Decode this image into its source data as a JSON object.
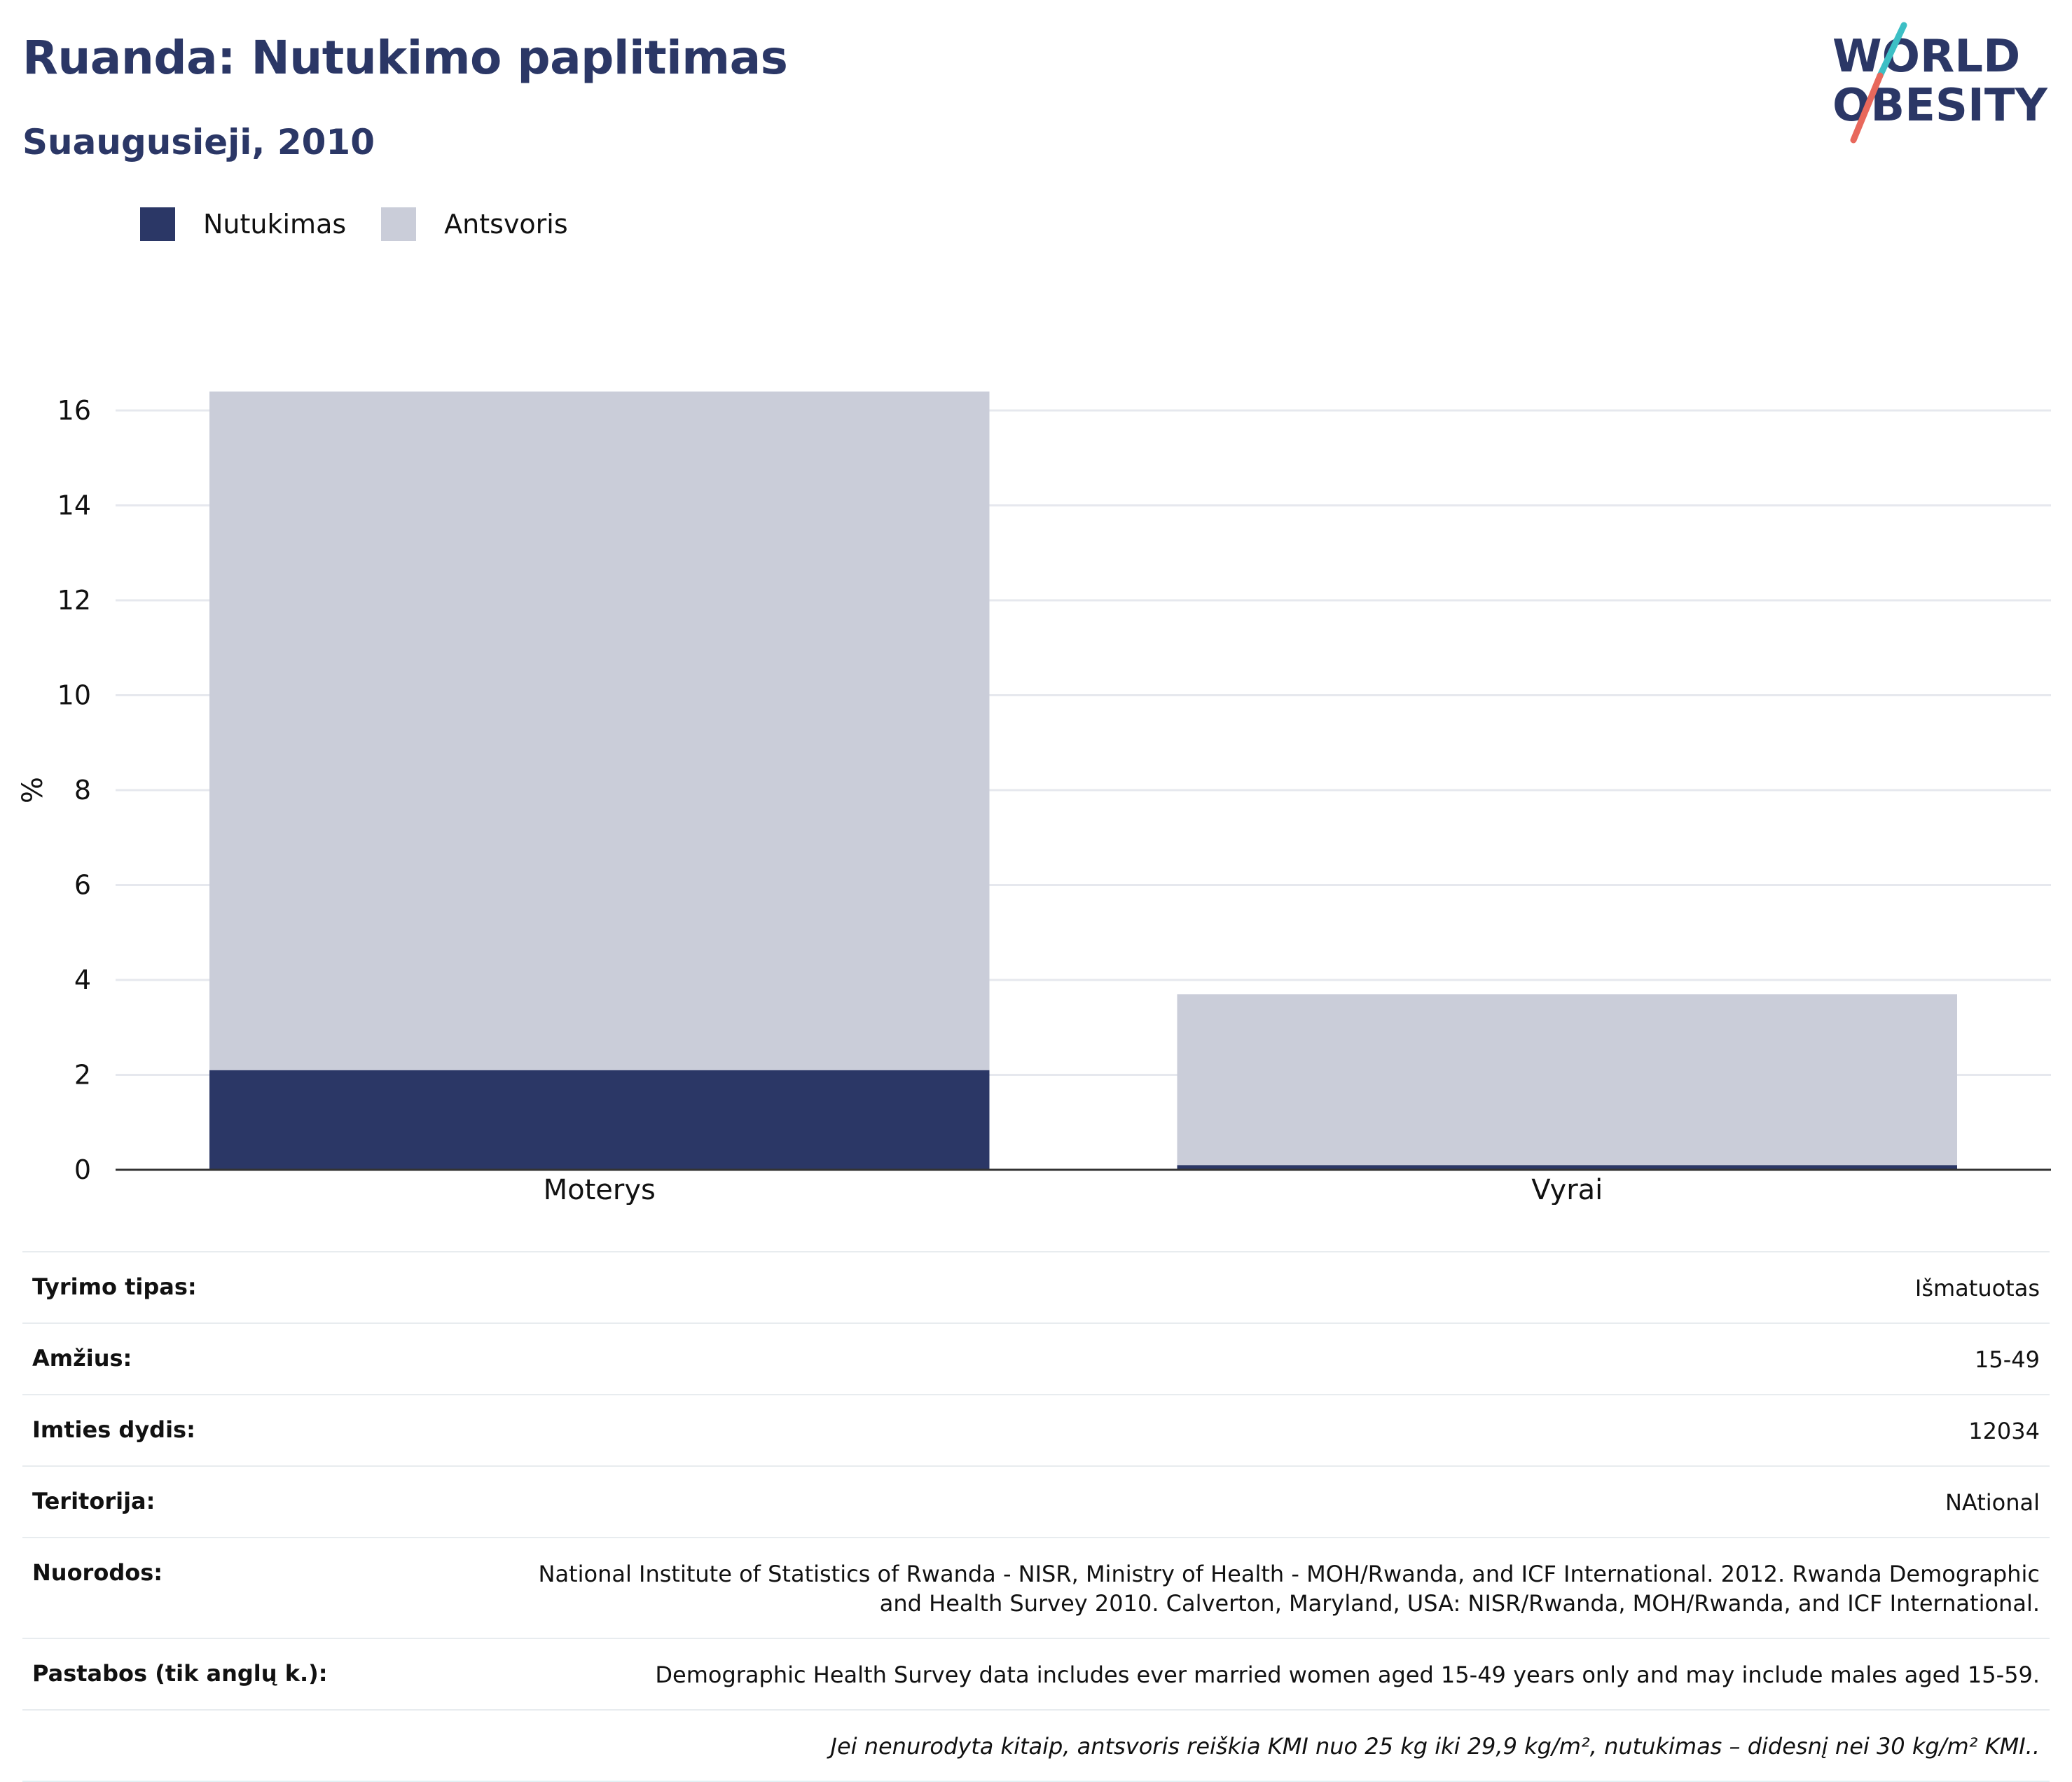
{
  "header": {
    "title": "Ruanda: Nutukimo paplitimas",
    "subtitle": "Suaugusieji, 2010"
  },
  "logo": {
    "line1": "WORLD",
    "line2": "OBESITY",
    "slash_colors": [
      "#3cbfc5",
      "#e8685c"
    ]
  },
  "legend": [
    {
      "label": "Nutukimas",
      "color": "#2b3766"
    },
    {
      "label": "Antsvoris",
      "color": "#cacdd9"
    }
  ],
  "chart_data": {
    "type": "bar",
    "stacked": true,
    "categories": [
      "Moterys",
      "Vyrai"
    ],
    "series": [
      {
        "name": "Nutukimas",
        "values": [
          2.1,
          0.1
        ],
        "color": "#2b3766"
      },
      {
        "name": "Antsvoris",
        "values": [
          14.3,
          3.6
        ],
        "color": "#cacdd9"
      }
    ],
    "ylabel": "%",
    "ylim": [
      0,
      16.5
    ],
    "yticks": [
      0,
      2,
      4,
      6,
      8,
      10,
      12,
      14,
      16
    ],
    "grid": true,
    "legend_position": "top-left"
  },
  "info": {
    "rows": [
      {
        "label": "Tyrimo tipas:",
        "value": "Išmatuotas"
      },
      {
        "label": "Amžius:",
        "value": "15-49"
      },
      {
        "label": "Imties dydis:",
        "value": "12034"
      },
      {
        "label": "Teritorija:",
        "value": "NAtional"
      },
      {
        "label": "Nuorodos:",
        "value": "National Institute of Statistics of Rwanda - NISR, Ministry of Health - MOH/Rwanda, and ICF International. 2012. Rwanda Demographic and Health Survey 2010. Calverton, Maryland, USA: NISR/Rwanda, MOH/Rwanda, and ICF International."
      },
      {
        "label": "Pastabos (tik anglų k.):",
        "value": "Demographic Health Survey data includes ever married women aged 15-49 years only and may include males aged 15-59."
      }
    ],
    "footnote": "Jei nenurodyta kitaip, antsvoris reiškia KMI nuo 25 kg iki 29,9 kg/m², nutukimas – didesnį nei 30 kg/m² KMI.."
  }
}
